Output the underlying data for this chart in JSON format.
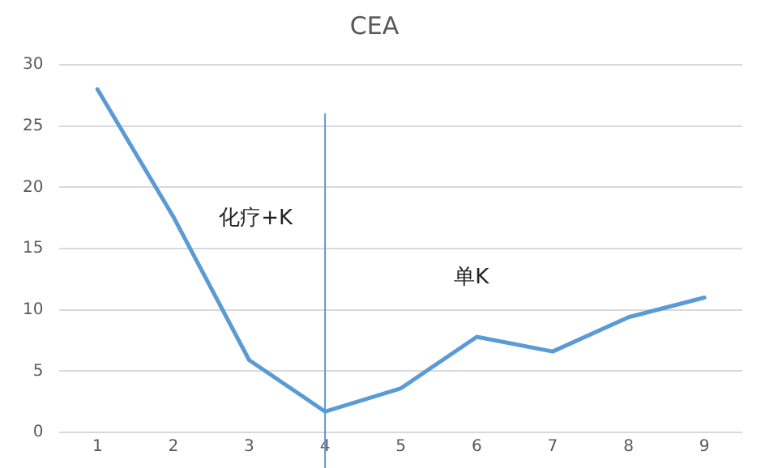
{
  "chart_data": {
    "type": "line",
    "title": "CEA",
    "x": [
      1,
      2,
      3,
      4,
      5,
      6,
      7,
      8,
      9
    ],
    "series": [
      {
        "color": "#5b9bd5",
        "values": [
          28,
          17.6,
          5.9,
          1.7,
          3.6,
          7.8,
          6.6,
          9.4,
          11
        ]
      }
    ],
    "xlim": [
      0.5,
      9.5
    ],
    "xticks": [
      1,
      2,
      3,
      4,
      5,
      6,
      7,
      8,
      9
    ],
    "ylim": [
      0,
      30
    ],
    "yticks": [
      0,
      5,
      10,
      15,
      20,
      25,
      30
    ],
    "grid": "y",
    "legend": false,
    "marker": "none",
    "line_style": "solid",
    "ref_lines": [
      {
        "axis": "x",
        "value": 4,
        "color": "#5b9bd5"
      }
    ],
    "annotations": [
      "化疗+K",
      "单K"
    ]
  }
}
